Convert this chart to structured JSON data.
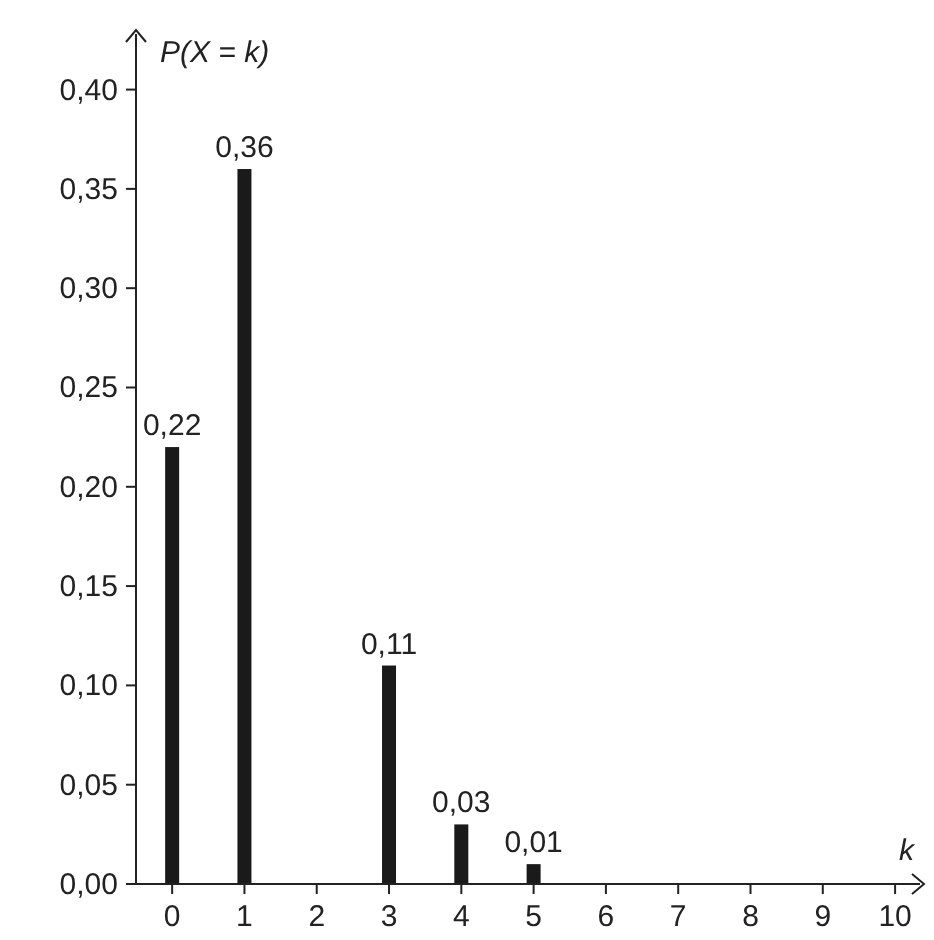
{
  "chart_data": {
    "type": "bar",
    "xlabel": "k",
    "ylabel": "P(X = k)",
    "x": [
      0,
      1,
      3,
      4,
      5
    ],
    "values": [
      0.22,
      0.36,
      0.11,
      0.03,
      0.01
    ],
    "value_labels": [
      "0,22",
      "0,36",
      "0,11",
      "0,03",
      "0,01"
    ],
    "color": "#1a1a1a",
    "xlim": [
      -0.5,
      10.4
    ],
    "xticks": [
      0,
      1,
      2,
      3,
      4,
      5,
      6,
      7,
      8,
      9,
      10
    ],
    "ylim": [
      0,
      0.43
    ],
    "yticks": [
      {
        "value": 0,
        "label": "0,00"
      },
      {
        "value": 0.05,
        "label": "0,05"
      },
      {
        "value": 0.1,
        "label": "0,10"
      },
      {
        "value": 0.15,
        "label": "0,15"
      },
      {
        "value": 0.2,
        "label": "0,20"
      },
      {
        "value": 0.25,
        "label": "0,25"
      },
      {
        "value": 0.3,
        "label": "0,30"
      },
      {
        "value": 0.35,
        "label": "0,35"
      },
      {
        "value": 0.4,
        "label": "0,40"
      }
    ],
    "grid": false
  }
}
